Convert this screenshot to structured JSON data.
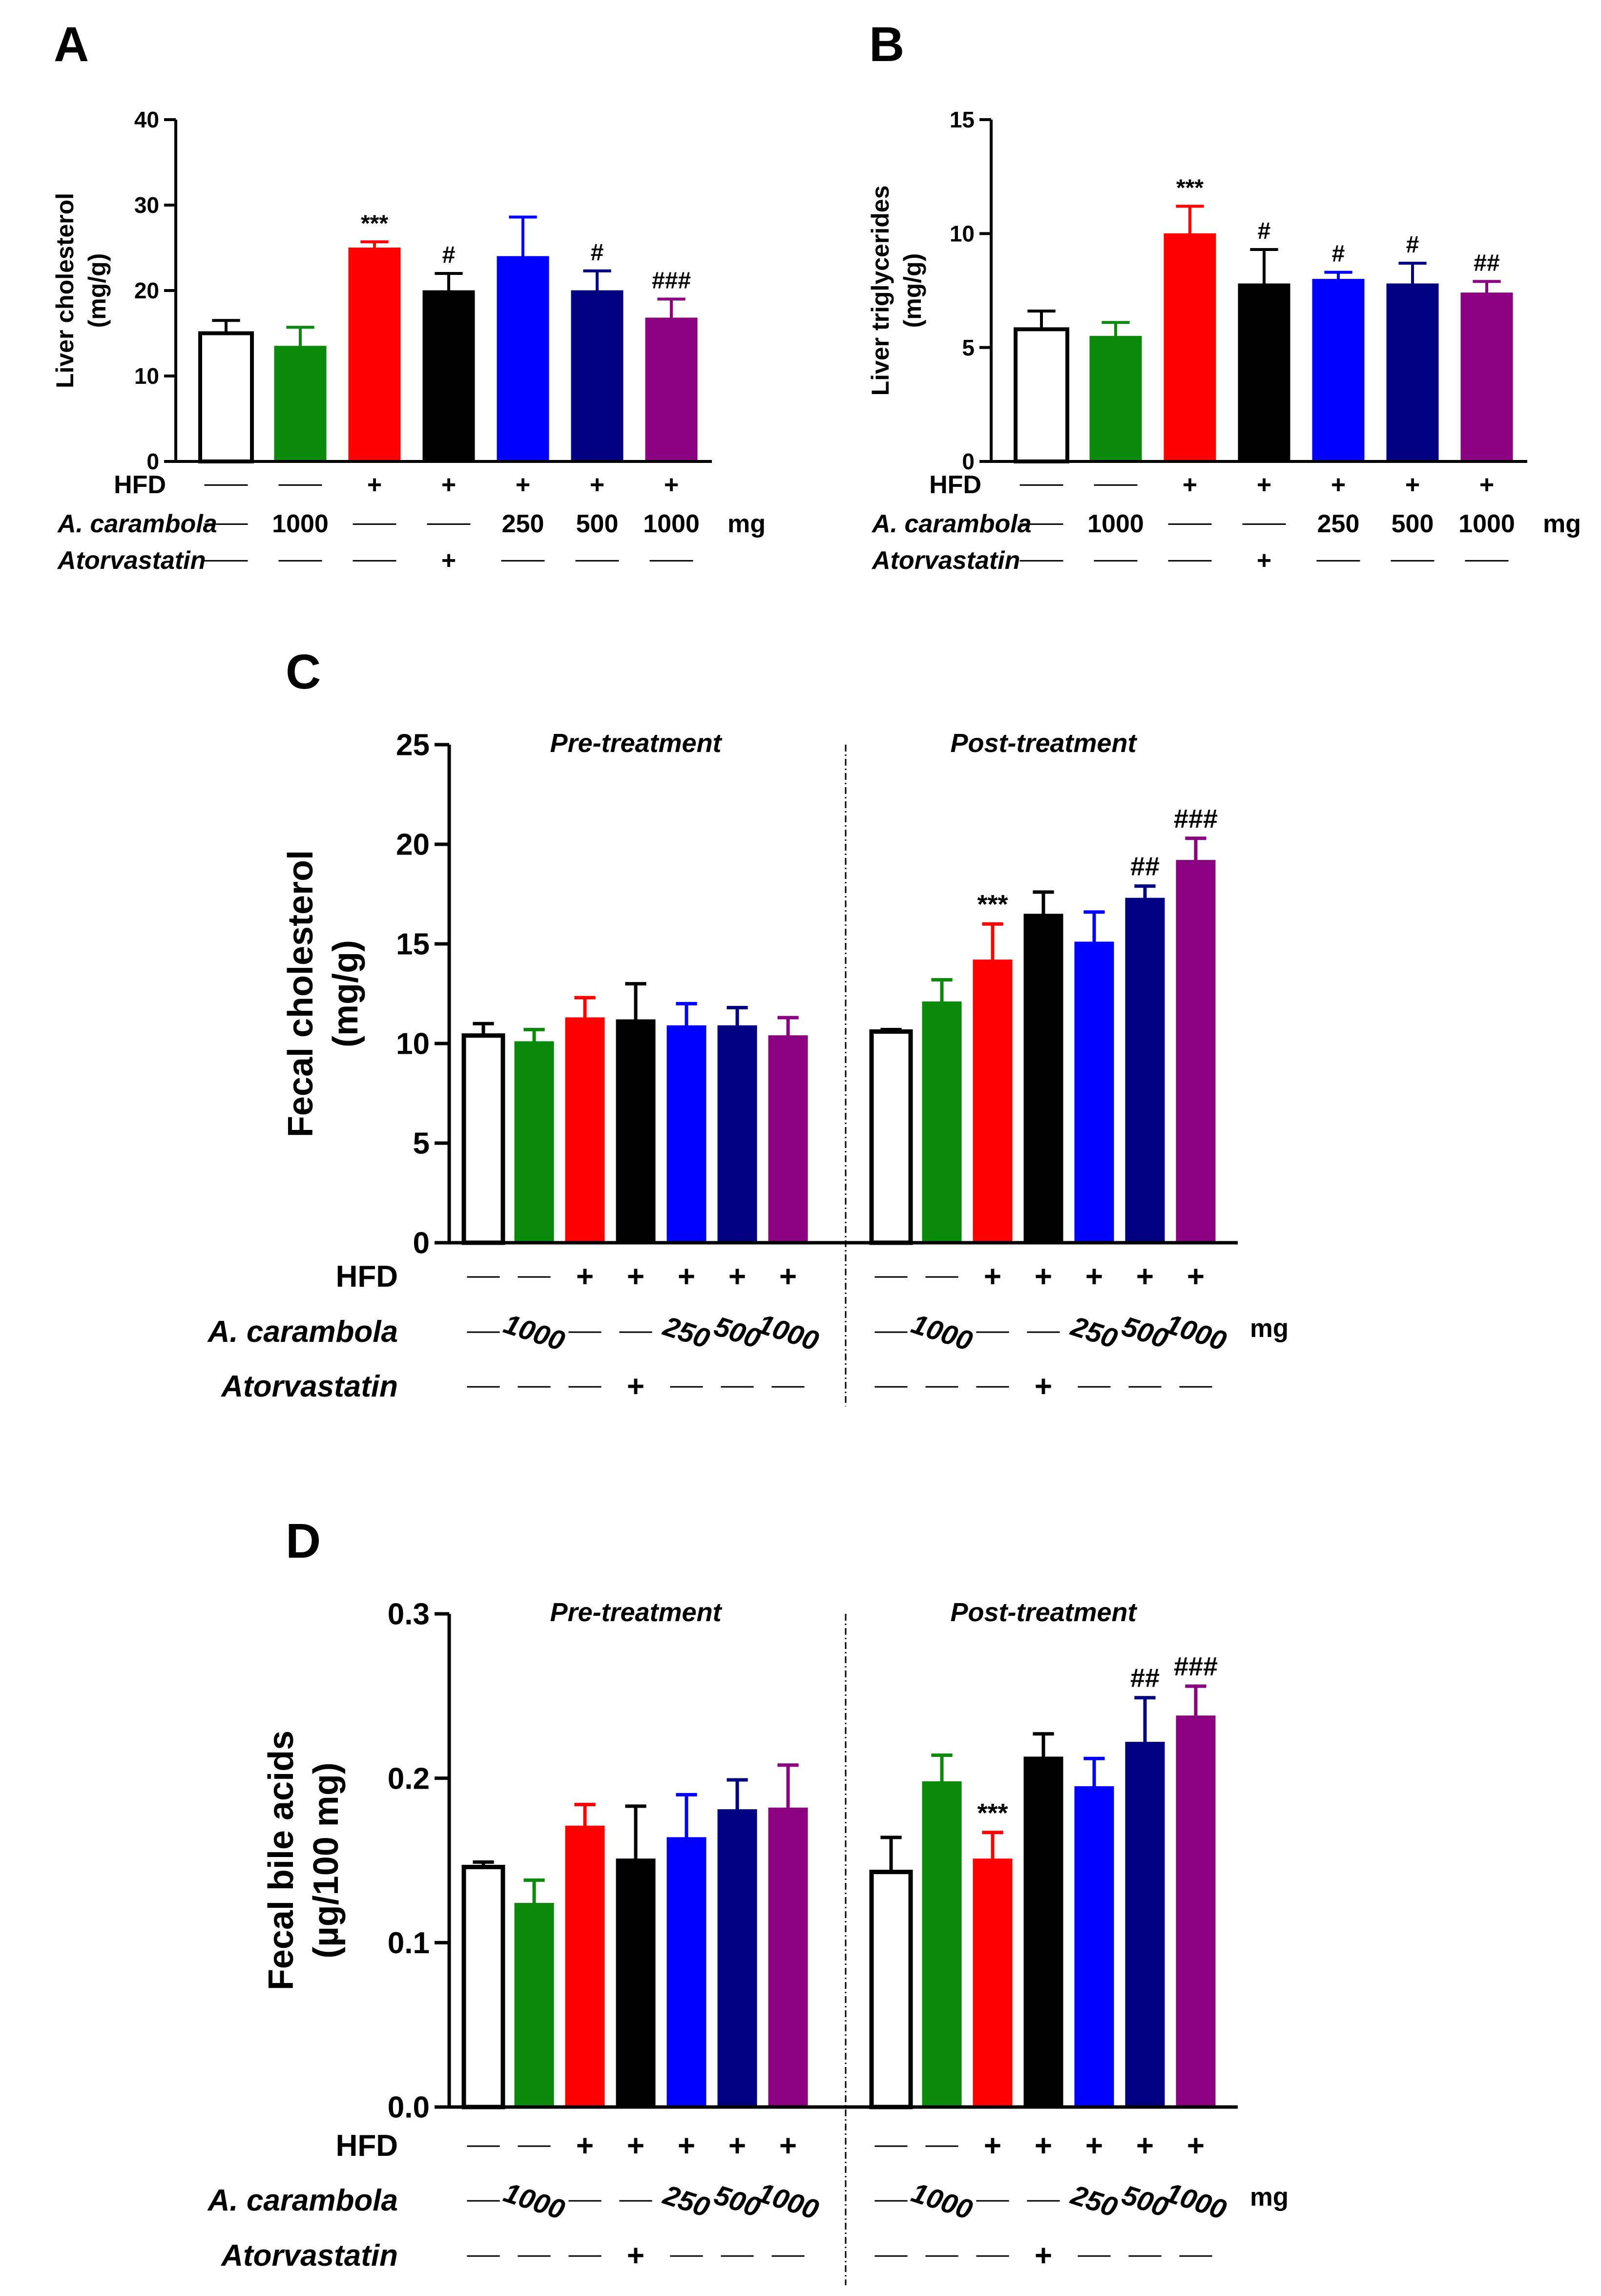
{
  "colors": {
    "control": "#ffffff",
    "green": "#0b8a0b",
    "red": "#ff0000",
    "black": "#000000",
    "blue": "#0000ff",
    "navy": "#000080",
    "purple": "#8b0080"
  },
  "group_colors": [
    "control",
    "green",
    "red",
    "black",
    "blue",
    "navy",
    "purple"
  ],
  "treatment_rows": {
    "hfd_label": "HFD",
    "carambola_label": "A. carambola",
    "atorvastatin_label": "Atorvastatin",
    "unit": "mg",
    "hfd": [
      "—",
      "—",
      "+",
      "+",
      "+",
      "+",
      "+"
    ],
    "carambola": [
      "—",
      "1000",
      "—",
      "—",
      "250",
      "500",
      "1000"
    ],
    "atorvastatin": [
      "—",
      "—",
      "—",
      "+",
      "—",
      "—",
      "—"
    ]
  },
  "chart_data": [
    {
      "panel": "A",
      "type": "bar",
      "ylabel": [
        "Liver cholesterol",
        "(mg/g)"
      ],
      "ylim": [
        0,
        40
      ],
      "yticks": [
        "0",
        "10",
        "20",
        "30",
        "40"
      ],
      "values": [
        15,
        13.5,
        25,
        20,
        24,
        20,
        16.8
      ],
      "errors": [
        1.5,
        2.2,
        0.7,
        2,
        4.6,
        2.3,
        2.2
      ],
      "annotations": [
        "",
        "",
        "***",
        "#",
        "",
        "#",
        "###"
      ]
    },
    {
      "panel": "B",
      "type": "bar",
      "ylabel": [
        "Liver triglycerides",
        "(mg/g)"
      ],
      "ylim": [
        0,
        15
      ],
      "yticks": [
        "0",
        "5",
        "10",
        "15"
      ],
      "values": [
        5.8,
        5.5,
        10,
        7.8,
        8,
        7.8,
        7.4
      ],
      "errors": [
        0.8,
        0.6,
        1.2,
        1.5,
        0.3,
        0.9,
        0.5
      ],
      "annotations": [
        "",
        "",
        "***",
        "#",
        "#",
        "#",
        "##"
      ]
    },
    {
      "panel": "C",
      "type": "bar",
      "ylabel": [
        "Fecal cholesterol",
        "(mg/g)"
      ],
      "ylim": [
        0,
        25
      ],
      "yticks": [
        "0",
        "5",
        "10",
        "15",
        "20",
        "25"
      ],
      "section_labels": [
        "Pre-treatment",
        "Post-treatment"
      ],
      "pre_values": [
        10.4,
        10.1,
        11.3,
        11.2,
        10.9,
        10.9,
        10.4
      ],
      "pre_errors": [
        0.6,
        0.6,
        1,
        1.8,
        1.1,
        0.9,
        0.9
      ],
      "pre_annotations": [
        "",
        "",
        "",
        "",
        "",
        "",
        ""
      ],
      "post_values": [
        10.6,
        12.1,
        14.2,
        16.5,
        15.1,
        17.3,
        19.2
      ],
      "post_errors": [
        0.1,
        1.1,
        1.8,
        1.1,
        1.5,
        0.6,
        1.1
      ],
      "post_annotations": [
        "",
        "",
        "***",
        "",
        "",
        "##",
        "###"
      ]
    },
    {
      "panel": "D",
      "type": "bar",
      "ylabel": [
        "Fecal bile acids",
        "(µg/100 mg)"
      ],
      "ylim": [
        0,
        0.3
      ],
      "yticks": [
        "0.0",
        "0.1",
        "0.2",
        "0.3"
      ],
      "section_labels": [
        "Pre-treatment",
        "Post-treatment"
      ],
      "pre_values": [
        0.146,
        0.124,
        0.171,
        0.151,
        0.164,
        0.181,
        0.182
      ],
      "pre_errors": [
        0.003,
        0.014,
        0.013,
        0.032,
        0.026,
        0.018,
        0.026
      ],
      "pre_annotations": [
        "",
        "",
        "",
        "",
        "",
        "",
        ""
      ],
      "post_values": [
        0.143,
        0.198,
        0.151,
        0.213,
        0.195,
        0.222,
        0.238
      ],
      "post_errors": [
        0.021,
        0.016,
        0.016,
        0.014,
        0.017,
        0.027,
        0.018
      ],
      "post_annotations": [
        "",
        "",
        "***",
        "",
        "",
        "##",
        "###"
      ]
    }
  ]
}
